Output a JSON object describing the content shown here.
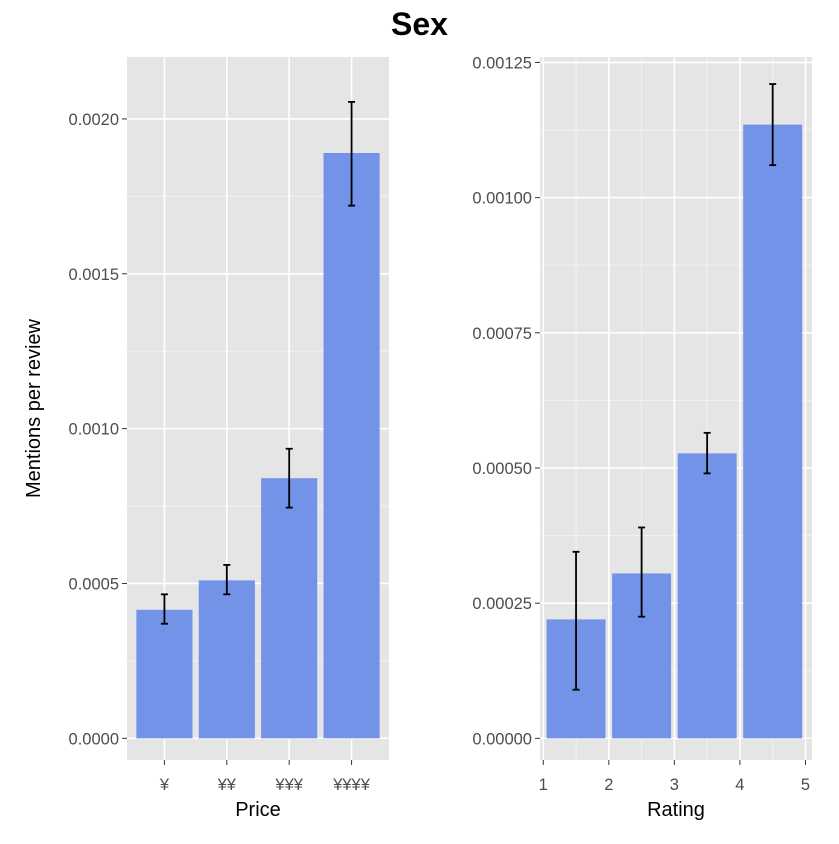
{
  "title": "Sex",
  "colors": {
    "panel_background": "#e5e5e5",
    "grid_major": "#ffffff",
    "grid_minor": "#f2f2f2",
    "bar_fill": "#7393e8",
    "error_bar": "#000000",
    "tick_label": "#4d4d4d",
    "axis_title": "#000000"
  },
  "chart_data": [
    {
      "type": "bar",
      "xlabel": "Price",
      "ylabel": "Mentions per review",
      "categories": [
        "¥",
        "¥¥",
        "¥¥¥",
        "¥¥¥¥"
      ],
      "values": [
        0.000415,
        0.00051,
        0.00084,
        0.00189
      ],
      "error_low": [
        0.00037,
        0.000465,
        0.000745,
        0.00172
      ],
      "error_high": [
        0.000465,
        0.00056,
        0.000935,
        0.002055
      ],
      "ylim": [
        -7e-05,
        0.0022
      ],
      "yticks": [
        0.0,
        0.0005,
        0.001,
        0.0015,
        0.002
      ],
      "ytick_labels": [
        "0.0000",
        "0.0005",
        "0.0010",
        "0.0015",
        "0.0020"
      ],
      "grid": true
    },
    {
      "type": "bar",
      "xlabel": "Rating",
      "ylabel": "",
      "x": [
        1.5,
        2.5,
        3.5,
        4.5
      ],
      "bar_width": 0.9,
      "values": [
        0.00022,
        0.000305,
        0.000527,
        0.001135
      ],
      "error_low": [
        9e-05,
        0.000225,
        0.00049,
        0.00106
      ],
      "error_high": [
        0.000345,
        0.00039,
        0.000565,
        0.00121
      ],
      "xlim": [
        0.95,
        5.1
      ],
      "ylim": [
        -4e-05,
        0.00126
      ],
      "xticks": [
        1,
        2,
        3,
        4,
        5
      ],
      "xtick_labels": [
        "1",
        "2",
        "3",
        "4",
        "5"
      ],
      "yticks": [
        0.0,
        0.00025,
        0.0005,
        0.00075,
        0.001,
        0.00125
      ],
      "ytick_labels": [
        "0.00000",
        "0.00025",
        "0.00050",
        "0.00075",
        "0.00100",
        "0.00125"
      ],
      "grid": true
    }
  ]
}
